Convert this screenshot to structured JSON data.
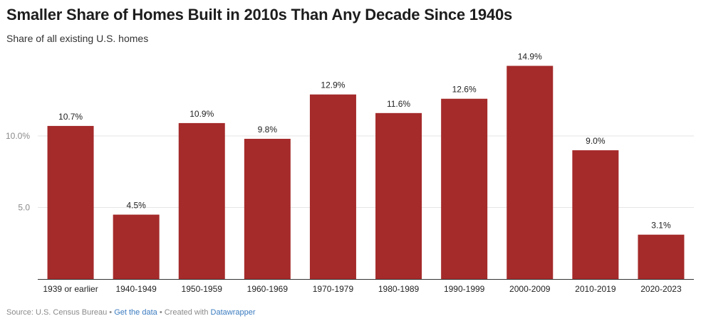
{
  "chart_data": {
    "type": "bar",
    "title": "Smaller Share of Homes Built in 2010s Than Any Decade Since 1940s",
    "subtitle": "Share of all existing U.S. homes",
    "categories": [
      "1939 or earlier",
      "1940-1949",
      "1950-1959",
      "1960-1969",
      "1970-1979",
      "1980-1989",
      "1990-1999",
      "2000-2009",
      "2010-2019",
      "2020-2023"
    ],
    "values": [
      10.7,
      4.5,
      10.9,
      9.8,
      12.9,
      11.6,
      12.6,
      14.9,
      9.0,
      3.1
    ],
    "value_labels": [
      "10.7%",
      "4.5%",
      "10.9%",
      "9.8%",
      "12.9%",
      "11.6%",
      "12.6%",
      "14.9%",
      "9.0%",
      "3.1%"
    ],
    "yticks": [
      {
        "value": 5,
        "label": "5.0"
      },
      {
        "value": 10,
        "label": "10.0%"
      }
    ],
    "ylim": [
      0,
      15
    ],
    "xlabel": "",
    "ylabel": "",
    "bar_color": "#a52a2a",
    "grid": true,
    "legend": "none"
  },
  "footer": {
    "source": "Source: U.S. Census Bureau",
    "sep1": " • ",
    "get_data": "Get the data",
    "sep2": " • ",
    "created_with": "Created with ",
    "datawrapper": "Datawrapper"
  }
}
